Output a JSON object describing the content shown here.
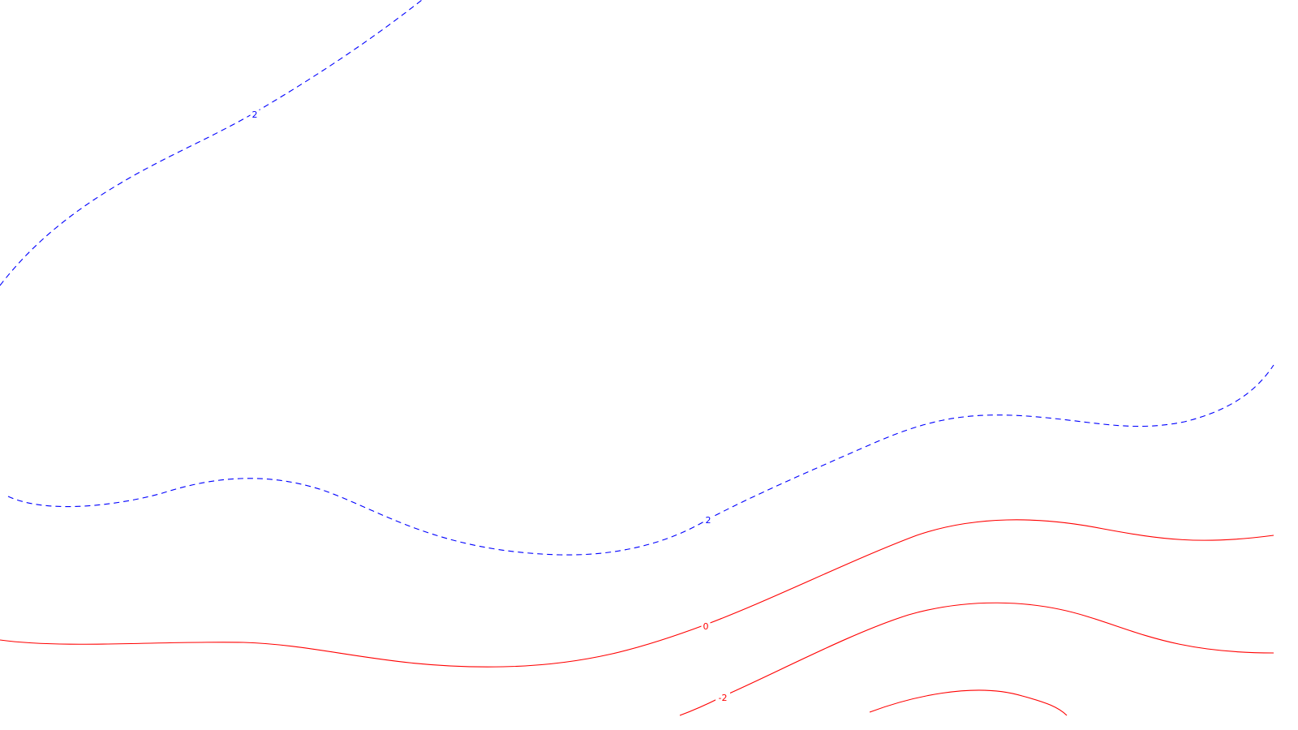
{
  "chart_data": {
    "type": "contour",
    "title": "",
    "xlabel": "",
    "ylabel": "",
    "grid": false,
    "legend": "none",
    "colors": {
      "positive": "#0000ff",
      "zero": "#ff0000",
      "negative": "#ff0000",
      "background": "#ffffff"
    },
    "contours": [
      {
        "level": 2,
        "label": "2",
        "color": "#0000ff",
        "dashed": true,
        "segment": "upper-left"
      },
      {
        "level": 2,
        "label": "2",
        "color": "#0000ff",
        "dashed": true,
        "segment": "middle"
      },
      {
        "level": 0,
        "label": "0",
        "color": "#ff0000",
        "dashed": false,
        "segment": "lower"
      },
      {
        "level": -2,
        "label": "-2",
        "color": "#ff0000",
        "dashed": false,
        "segment": "lowest"
      },
      {
        "level": -4,
        "label": "",
        "color": "#ff0000",
        "dashed": false,
        "segment": "bottom-fragment"
      }
    ]
  }
}
